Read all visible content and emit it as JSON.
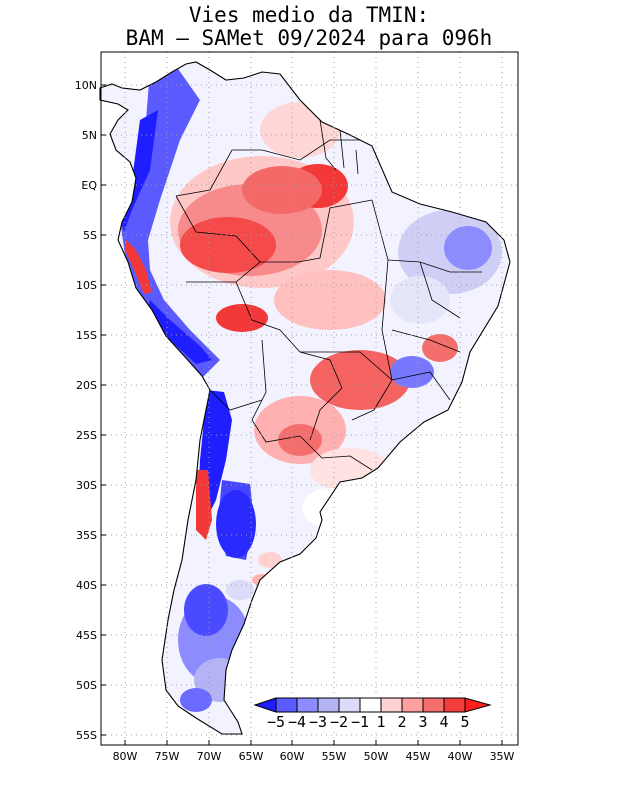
{
  "title": {
    "line1": "Vies medio da TMIN:",
    "line2": "BAM – SAMet 09/2024  para 096h"
  },
  "map": {
    "region": "South America",
    "variable": "TMIN bias",
    "lat_labels": [
      "10N",
      "5N",
      "EQ",
      "5S",
      "10S",
      "15S",
      "20S",
      "25S",
      "30S",
      "35S",
      "40S",
      "45S",
      "50S",
      "55S"
    ],
    "lon_labels": [
      "80W",
      "75W",
      "70W",
      "65W",
      "60W",
      "55W",
      "50W",
      "45W",
      "40W",
      "35W"
    ]
  },
  "colorbar": {
    "labels": [
      "−5",
      "−4",
      "−3",
      "−2",
      "−1",
      "1",
      "2",
      "3",
      "4",
      "5"
    ],
    "colors": [
      "#1e1eff",
      "#5a5aff",
      "#8c8cff",
      "#b4b4f5",
      "#dcdcf8",
      "#ffffff",
      "#ffd2d2",
      "#ffa0a0",
      "#f56e6e",
      "#f53c3c",
      "#ff1e1e"
    ]
  }
}
